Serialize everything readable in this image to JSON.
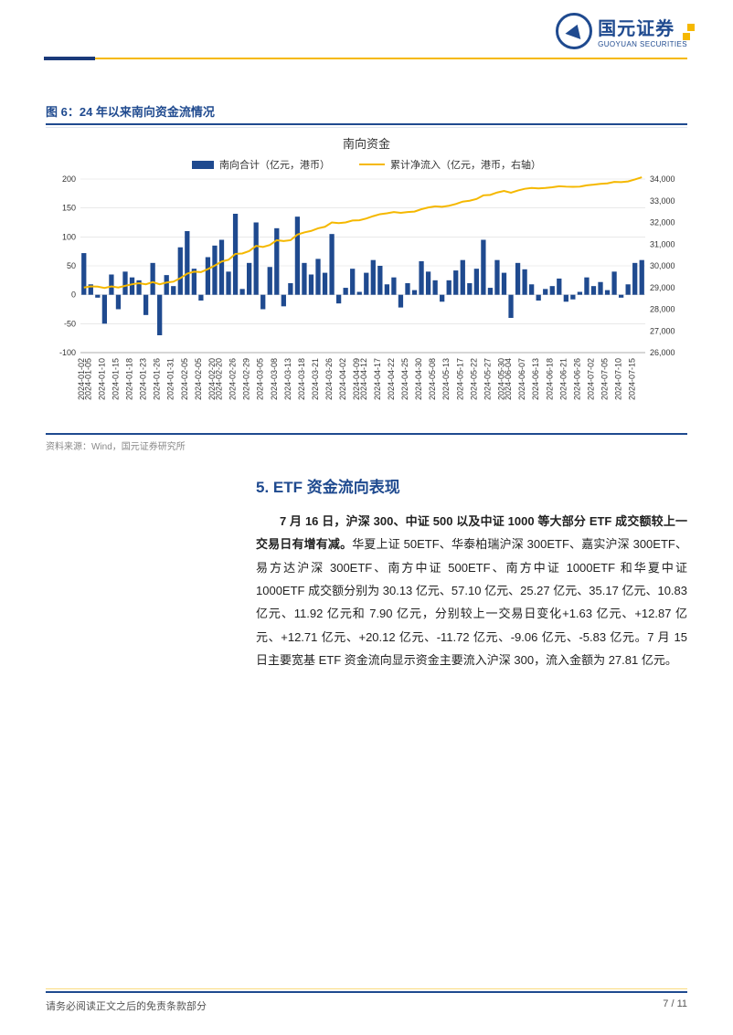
{
  "brand": {
    "cn": "国元证券",
    "en": "GUOYUAN SECURITIES"
  },
  "figure": {
    "label": "图 6：24 年以来南向资金流情况",
    "chart_title": "南向资金",
    "legend_bar": "南向合计（亿元，港币）",
    "legend_line": "累计净流入（亿元，港币，右轴）",
    "source": "资料来源：Wind，国元证券研究所",
    "chart": {
      "type": "bar+line",
      "left_ylim": [
        -100,
        200
      ],
      "left_ytick_step": 50,
      "right_ylim": [
        26000,
        34000
      ],
      "right_ytick_step": 1000,
      "bar_color": "#1f4a8f",
      "line_color": "#f5b800",
      "grid_color": "#dcdcdc",
      "background_color": "#ffffff",
      "x_labels": [
        "2024-01-02",
        "2024-01-05",
        "2024-01-10",
        "2024-01-15",
        "2024-01-18",
        "2024-01-23",
        "2024-01-26",
        "2024-01-31",
        "2024-02-05",
        "2024-02-05",
        "2024-02-20",
        "2024-02-20",
        "2024-02-26",
        "2024-02-29",
        "2024-03-05",
        "2024-03-08",
        "2024-03-13",
        "2024-03-18",
        "2024-03-21",
        "2024-03-26",
        "2024-04-02",
        "2024-04-09",
        "2024-04-12",
        "2024-04-17",
        "2024-04-22",
        "2024-04-25",
        "2024-04-30",
        "2024-05-08",
        "2024-05-13",
        "2024-05-17",
        "2024-05-22",
        "2024-05-27",
        "2024-05-30",
        "2024-06-04",
        "2024-06-07",
        "2024-06-13",
        "2024-06-18",
        "2024-06-21",
        "2024-06-26",
        "2024-07-02",
        "2024-07-05",
        "2024-07-10",
        "2024-07-15"
      ],
      "bars": [
        72,
        18,
        -5,
        -50,
        35,
        -25,
        40,
        30,
        25,
        -35,
        55,
        -70,
        34,
        15,
        82,
        110,
        45,
        -10,
        65,
        85,
        95,
        40,
        140,
        10,
        55,
        125,
        -25,
        48,
        115,
        -20,
        20,
        135,
        55,
        35,
        62,
        38,
        105,
        -15,
        12,
        45,
        5,
        38,
        60,
        50,
        18,
        30,
        -22,
        20,
        8,
        58,
        40,
        25,
        -12,
        25,
        42,
        60,
        20,
        45,
        95,
        12,
        60,
        38,
        -40,
        55,
        44,
        18,
        -10,
        10,
        15,
        28,
        -12,
        -8,
        5,
        30,
        15,
        22,
        8,
        40,
        -5,
        18,
        55,
        60
      ],
      "line": [
        29000,
        29050,
        29040,
        28980,
        29050,
        29000,
        29080,
        29150,
        29200,
        29150,
        29250,
        29150,
        29230,
        29270,
        29430,
        29640,
        29730,
        29710,
        29850,
        30010,
        30200,
        30280,
        30550,
        30570,
        30680,
        30920,
        30870,
        30960,
        31180,
        31140,
        31180,
        31440,
        31540,
        31610,
        31730,
        31800,
        32000,
        31970,
        32000,
        32090,
        32100,
        32180,
        32290,
        32380,
        32420,
        32480,
        32440,
        32480,
        32500,
        32610,
        32690,
        32740,
        32720,
        32770,
        32850,
        32960,
        33000,
        33080,
        33250,
        33270,
        33380,
        33450,
        33370,
        33470,
        33550,
        33590,
        33570,
        33590,
        33620,
        33670,
        33650,
        33640,
        33650,
        33710,
        33740,
        33780,
        33800,
        33870,
        33860,
        33890,
        33980,
        34080
      ],
      "label_fontsize": 10,
      "tick_fontsize": 9
    }
  },
  "section": {
    "heading": "5. ETF 资金流向表现",
    "paragraph_bold": "7 月 16 日，沪深 300、中证 500 以及中证 1000 等大部分 ETF 成交额较上一交易日有增有减。",
    "paragraph_rest": "华夏上证 50ETF、华泰柏瑞沪深 300ETF、嘉实沪深 300ETF、易方达沪深 300ETF、南方中证 500ETF、南方中证 1000ETF 和华夏中证 1000ETF 成交额分别为 30.13 亿元、57.10 亿元、25.27 亿元、35.17 亿元、10.83 亿元、11.92 亿元和 7.90 亿元，分别较上一交易日变化+1.63 亿元、+12.87 亿元、+12.71 亿元、+20.12 亿元、-11.72 亿元、-9.06 亿元、-5.83 亿元。7 月 15 日主要宽基 ETF 资金流向显示资金主要流入沪深 300，流入金额为 27.81 亿元。"
  },
  "footer": {
    "disclaimer": "请务必阅读正文之后的免责条款部分",
    "page": "7 / 11"
  }
}
